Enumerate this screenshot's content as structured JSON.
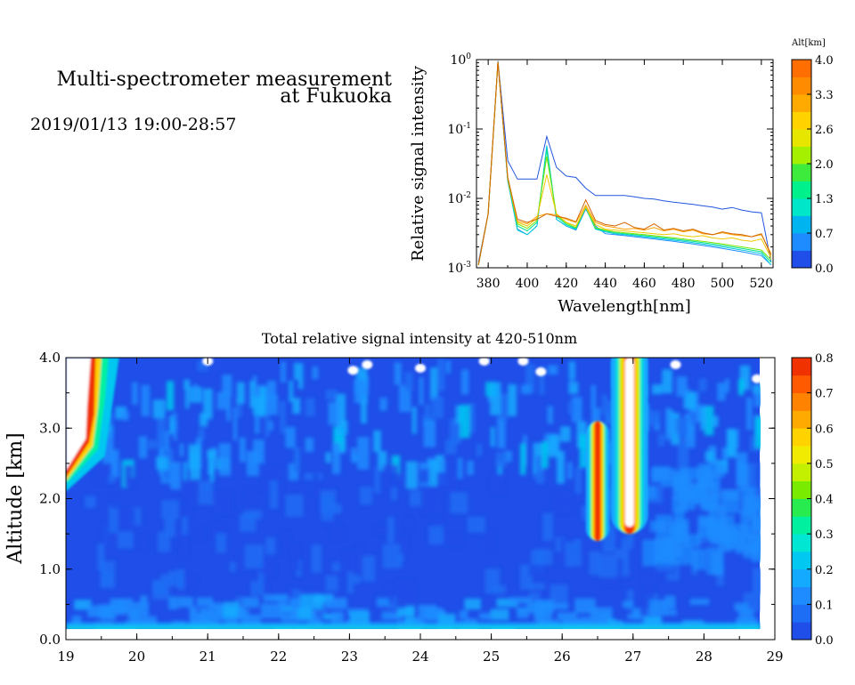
{
  "header": {
    "title_line1": "Multi-spectrometer measurement",
    "title_line2": "at Fukuoka",
    "datetime": "2019/01/13 19:00-28:57"
  },
  "chart_data": [
    {
      "type": "line",
      "xlabel": "Wavelength[nm]",
      "ylabel": "Relative signal intensity",
      "xlim": [
        374,
        526
      ],
      "ylim": [
        0.001,
        1
      ],
      "yscale": "log",
      "x_ticks": [
        380,
        400,
        420,
        440,
        460,
        480,
        500,
        520
      ],
      "y_ticks": [
        {
          "base": "10",
          "exp": "0",
          "value": 1
        },
        {
          "base": "10",
          "exp": "-1",
          "value": 0.1
        },
        {
          "base": "10",
          "exp": "-2",
          "value": 0.01
        },
        {
          "base": "10",
          "exp": "-3",
          "value": 0.001
        }
      ],
      "x": [
        375,
        380,
        385,
        390,
        395,
        400,
        405,
        410,
        415,
        420,
        425,
        430,
        435,
        440,
        445,
        450,
        455,
        460,
        465,
        470,
        475,
        480,
        485,
        490,
        495,
        500,
        505,
        510,
        515,
        520,
        525
      ],
      "series": [
        {
          "alt": 0.0,
          "color": "#2255dd",
          "values": [
            0.0012,
            0.006,
            0.95,
            0.035,
            0.019,
            0.019,
            0.019,
            0.078,
            0.028,
            0.021,
            0.02,
            0.014,
            0.011,
            0.011,
            0.011,
            0.011,
            0.0105,
            0.01,
            0.0098,
            0.0092,
            0.0088,
            0.0085,
            0.0082,
            0.0078,
            0.0075,
            0.007,
            0.0074,
            0.0068,
            0.0064,
            0.0062,
            0.0012
          ]
        },
        {
          "alt": 0.4,
          "color": "#1e8cff",
          "values": [
            0.0011,
            0.006,
            0.92,
            0.018,
            0.0036,
            0.003,
            0.004,
            0.055,
            0.005,
            0.004,
            0.0035,
            0.007,
            0.004,
            0.0031,
            0.003,
            0.0029,
            0.0028,
            0.0027,
            0.0026,
            0.0025,
            0.0024,
            0.0023,
            0.0022,
            0.0021,
            0.002,
            0.0019,
            0.0018,
            0.0017,
            0.0016,
            0.0015,
            0.0011
          ]
        },
        {
          "alt": 1.0,
          "color": "#00c8dc",
          "values": [
            0.0011,
            0.006,
            0.92,
            0.018,
            0.0035,
            0.003,
            0.004,
            0.058,
            0.005,
            0.004,
            0.0036,
            0.0072,
            0.0036,
            0.0033,
            0.0031,
            0.003,
            0.0029,
            0.0028,
            0.0027,
            0.0026,
            0.0025,
            0.0024,
            0.0023,
            0.0022,
            0.0021,
            0.002,
            0.0019,
            0.0018,
            0.0017,
            0.0016,
            0.0011
          ]
        },
        {
          "alt": 1.6,
          "color": "#00e08c",
          "values": [
            0.0011,
            0.006,
            0.92,
            0.019,
            0.004,
            0.0034,
            0.0045,
            0.05,
            0.0055,
            0.0042,
            0.0037,
            0.0074,
            0.0037,
            0.0034,
            0.0032,
            0.0031,
            0.003,
            0.0029,
            0.0028,
            0.0027,
            0.0026,
            0.0025,
            0.0024,
            0.0023,
            0.0022,
            0.0021,
            0.002,
            0.0019,
            0.0018,
            0.0017,
            0.0012
          ]
        },
        {
          "alt": 2.3,
          "color": "#78e600",
          "values": [
            0.0011,
            0.006,
            0.92,
            0.019,
            0.0043,
            0.0037,
            0.0048,
            0.04,
            0.0058,
            0.0044,
            0.0038,
            0.0075,
            0.0038,
            0.0035,
            0.0033,
            0.0032,
            0.0031,
            0.003,
            0.0029,
            0.0028,
            0.0027,
            0.0026,
            0.0025,
            0.0024,
            0.0023,
            0.0022,
            0.0021,
            0.002,
            0.0019,
            0.0018,
            0.0013
          ]
        },
        {
          "alt": 2.9,
          "color": "#f0c800",
          "values": [
            0.0011,
            0.006,
            0.92,
            0.02,
            0.0045,
            0.004,
            0.0052,
            0.022,
            0.006,
            0.0045,
            0.004,
            0.0075,
            0.0042,
            0.0036,
            0.0035,
            0.0034,
            0.0033,
            0.0032,
            0.0031,
            0.003,
            0.0031,
            0.0029,
            0.0028,
            0.0029,
            0.0027,
            0.0026,
            0.0027,
            0.0025,
            0.0024,
            0.0026,
            0.0014
          ]
        },
        {
          "alt": 3.5,
          "color": "#ffa000",
          "values": [
            0.0011,
            0.006,
            0.92,
            0.02,
            0.0047,
            0.0043,
            0.0055,
            0.006,
            0.0058,
            0.005,
            0.0045,
            0.008,
            0.0045,
            0.004,
            0.0038,
            0.0036,
            0.0037,
            0.0035,
            0.0038,
            0.0034,
            0.0036,
            0.0033,
            0.0035,
            0.0031,
            0.003,
            0.0032,
            0.003,
            0.0029,
            0.0028,
            0.003,
            0.0016
          ]
        },
        {
          "alt": 4.0,
          "color": "#d26400",
          "values": [
            0.0011,
            0.006,
            0.92,
            0.02,
            0.005,
            0.0045,
            0.005,
            0.006,
            0.0055,
            0.0052,
            0.0046,
            0.0095,
            0.0048,
            0.0042,
            0.004,
            0.0045,
            0.0038,
            0.0036,
            0.0043,
            0.0035,
            0.0037,
            0.0034,
            0.0036,
            0.0032,
            0.003,
            0.0033,
            0.0031,
            0.003,
            0.0028,
            0.0031,
            0.0015
          ]
        }
      ],
      "colorbar": {
        "title": "Alt[km]",
        "min": 0.0,
        "max": 4.0,
        "tick_labels": [
          "4.0",
          "3.3",
          "2.6",
          "2.0",
          "1.3",
          "0.7",
          "0.0"
        ],
        "colors": [
          "#1f4ee8",
          "#1e8cff",
          "#00b4f0",
          "#00e6c8",
          "#00f08c",
          "#3ceb3c",
          "#a5f000",
          "#e6e600",
          "#ffd200",
          "#ffaa00",
          "#ff8c00",
          "#ff6e00"
        ]
      }
    },
    {
      "type": "heatmap",
      "title": "Total relative signal intensity at 420-510nm",
      "xlabel": "",
      "ylabel": "Altitude [km]",
      "xlim": [
        19,
        29
      ],
      "ylim": [
        0.0,
        4.0
      ],
      "x_tick_labels": [
        "19",
        "20",
        "21",
        "22",
        "23",
        "24",
        "25",
        "26",
        "27",
        "28",
        "29"
      ],
      "y_tick_labels": [
        "0.0",
        "1.0",
        "2.0",
        "3.0",
        "4.0"
      ],
      "data_x_range": [
        19.0,
        28.8
      ],
      "data_y_range": [
        0.15,
        4.0
      ],
      "features": [
        {
          "kind": "cloud",
          "x": 26.5,
          "y_range": [
            1.6,
            3.1
          ],
          "peak": 0.8
        },
        {
          "kind": "cloud-saturated",
          "x": 26.95,
          "y_range": [
            1.5,
            4.0
          ],
          "peak": 0.8
        },
        {
          "kind": "cloud",
          "x": 19.3,
          "y_range": [
            2.2,
            4.0
          ],
          "peak": 0.8
        }
      ],
      "colorbar": {
        "min": 0.0,
        "max": 0.8,
        "tick_labels": [
          "0.8",
          "0.7",
          "0.6",
          "0.5",
          "0.4",
          "0.3",
          "0.2",
          "0.1",
          "0.0"
        ],
        "colors": [
          "#1f4ee8",
          "#1e6ef5",
          "#1e8cff",
          "#14aaff",
          "#00c8f0",
          "#00e6d2",
          "#00f0a0",
          "#28eb50",
          "#78eb00",
          "#c3f000",
          "#f0eb00",
          "#ffd200",
          "#ffaa00",
          "#ff8200",
          "#ff5a00",
          "#f03200"
        ]
      }
    }
  ]
}
